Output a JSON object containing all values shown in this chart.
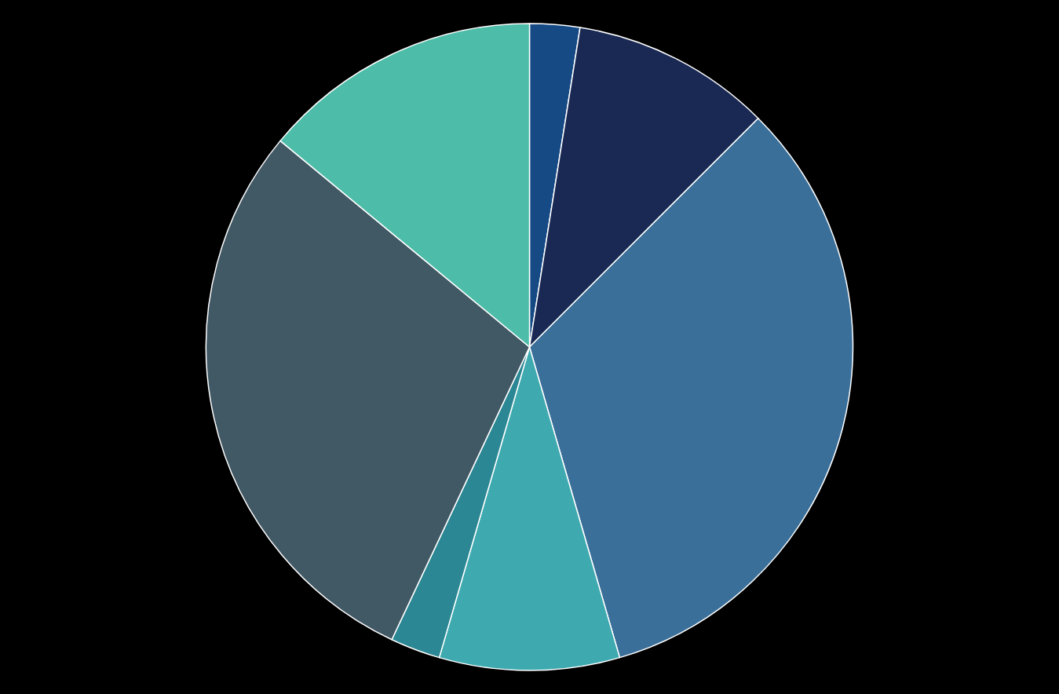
{
  "chart_data": {
    "type": "pie",
    "categories": [
      null,
      null,
      null,
      null,
      null,
      null,
      null
    ],
    "values": [
      2.5,
      10,
      33,
      9,
      2.5,
      29,
      14
    ],
    "colors": [
      "#154a85",
      "#1a2954",
      "#3a6f9a",
      "#3eaab0",
      "#2b8793",
      "#415865",
      "#4dbca8"
    ],
    "legend": false
  }
}
